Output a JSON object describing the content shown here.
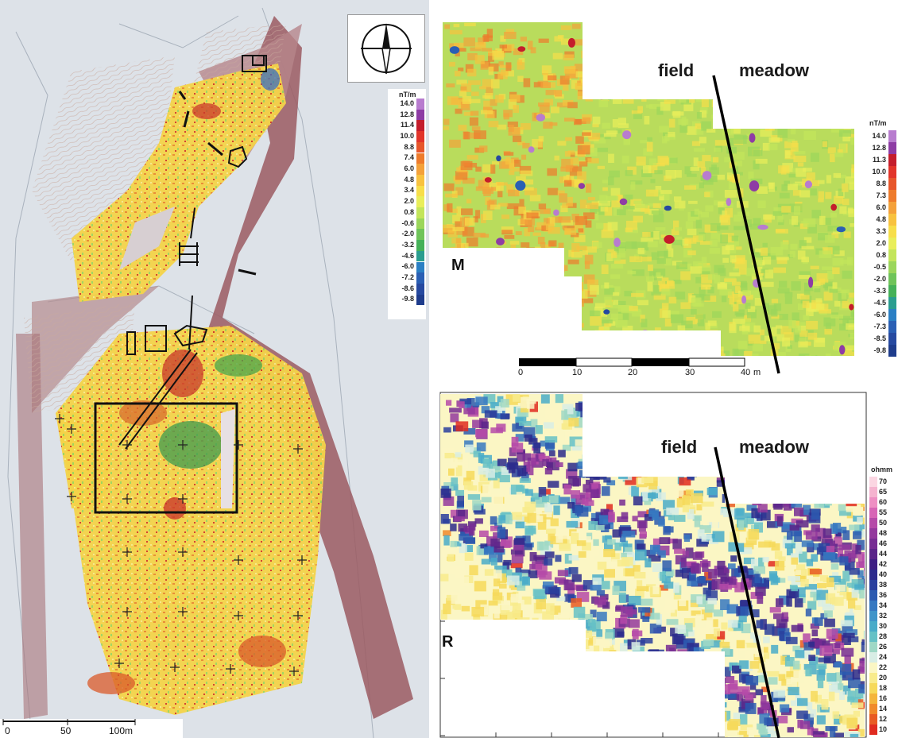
{
  "left_map": {
    "legend_unit": "nT/m",
    "legend_values": [
      "14.0",
      "12.8",
      "11.4",
      "10.0",
      "8.8",
      "7.4",
      "6.0",
      "4.8",
      "3.4",
      "2.0",
      "0.8",
      "-0.6",
      "-2.0",
      "-3.2",
      "-4.6",
      "-6.0",
      "-7.2",
      "-8.6",
      "-9.8"
    ],
    "scale_labels": [
      "0",
      "50",
      "100m"
    ]
  },
  "magnetic_panel": {
    "letter": "M",
    "label_field": "field",
    "label_meadow": "meadow",
    "legend_unit": "nT/m",
    "legend_values": [
      "14.0",
      "12.8",
      "11.3",
      "10.0",
      "8.8",
      "7.3",
      "6.0",
      "4.8",
      "3.3",
      "2.0",
      "0.8",
      "-0.5",
      "-2.0",
      "-3.3",
      "-4.5",
      "-6.0",
      "-7.3",
      "-8.5",
      "-9.8"
    ],
    "scale_ticks": [
      "0",
      "10",
      "20",
      "30",
      "40"
    ],
    "scale_unit": "m"
  },
  "resistivity_panel": {
    "letter": "R",
    "label_field": "field",
    "label_meadow": "meadow",
    "legend_unit": "ohmm",
    "legend_values": [
      "70",
      "65",
      "60",
      "55",
      "50",
      "48",
      "46",
      "44",
      "42",
      "40",
      "38",
      "36",
      "34",
      "32",
      "30",
      "28",
      "26",
      "24",
      "22",
      "20",
      "18",
      "16",
      "14",
      "12",
      "10"
    ]
  },
  "colors": {
    "mag_scale": [
      "#b87ccf",
      "#8e3ca5",
      "#c41d2c",
      "#e2342a",
      "#e7562b",
      "#ee7b2c",
      "#f4a13a",
      "#f8c23f",
      "#f7de4a",
      "#e9ee5a",
      "#c3e55b",
      "#9bd65b",
      "#6fc45a",
      "#45b158",
      "#2a9d8f",
      "#2a7fc4",
      "#2a5fb4",
      "#2649a0",
      "#1e3c8c"
    ],
    "res_scale": [
      "#fbd6e2",
      "#f5b3cf",
      "#ee8fc3",
      "#d765b5",
      "#b54aa8",
      "#93389d",
      "#762c93",
      "#5a2489",
      "#3e1e83",
      "#2c2a8c",
      "#2a3f9e",
      "#2c5ab0",
      "#3678c1",
      "#3f94c9",
      "#49abc9",
      "#66c1c6",
      "#9fd8c6",
      "#d8ede5",
      "#fbf6c4",
      "#f8eb8c",
      "#f6d95a",
      "#f4b53c",
      "#f08a2b",
      "#e85b24",
      "#e02b20"
    ],
    "hill_shade": "#8a4b52",
    "survey_yellow": "#f2d54a"
  }
}
